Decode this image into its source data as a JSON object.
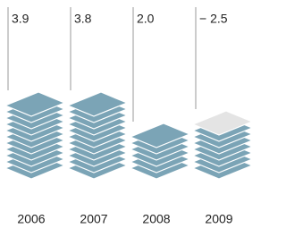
{
  "chart_data": {
    "type": "pictograph",
    "categories": [
      "2006",
      "2007",
      "2008",
      "2009"
    ],
    "values": [
      3.9,
      3.8,
      2.0,
      -2.5
    ],
    "value_labels": [
      "3.9",
      "3.8",
      "2.0",
      "− 2.5"
    ],
    "color": "#7ba4b6",
    "negative_color": "#e4e4e4"
  }
}
